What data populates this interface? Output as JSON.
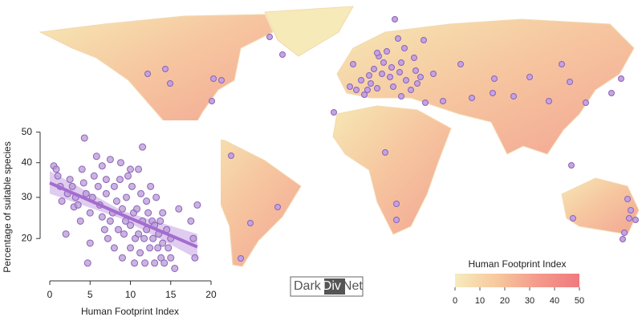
{
  "chart_data": [
    {
      "type": "scatter",
      "xlabel": "Human Footprint Index",
      "ylabel": "Percentage of suitable species",
      "xlim": [
        -0.5,
        20.5
      ],
      "ylim": [
        13.2,
        51.3
      ],
      "yscale": "sqrt",
      "xticks": [
        0,
        5,
        10,
        15,
        20
      ],
      "yticks": [
        20,
        30,
        40,
        50
      ],
      "color": "#b99ad6",
      "edgecolor": "#8a63b8",
      "x": [
        0.5,
        0.8,
        1,
        1.3,
        1.5,
        2,
        2.2,
        2.5,
        2.8,
        3,
        3.2,
        3.5,
        3.8,
        4,
        4.2,
        4.5,
        4.3,
        4.7,
        5,
        5,
        5.3,
        5.5,
        5.8,
        6,
        6.2,
        6.5,
        6.5,
        6.8,
        7,
        7,
        7.2,
        7.5,
        7.5,
        7.8,
        8,
        8,
        8.3,
        8.5,
        8.7,
        8.8,
        9,
        9,
        9.2,
        9.4,
        9.5,
        9.7,
        10,
        10,
        10,
        10.2,
        10.4,
        10.5,
        10.6,
        10.8,
        11,
        11,
        11.2,
        11.3,
        11.5,
        11.5,
        11.7,
        11.8,
        12,
        12,
        12.2,
        12.4,
        12.5,
        12.7,
        12.8,
        13,
        13,
        13.2,
        13.4,
        13.5,
        13.7,
        13.8,
        14,
        14,
        14.2,
        14.5,
        14.7,
        15,
        15,
        15.5,
        16,
        17.5,
        18,
        18.3,
        17.8
      ],
      "values": [
        39,
        38,
        36,
        33,
        29,
        21,
        31,
        35,
        33,
        27.5,
        30,
        28,
        24,
        38,
        34,
        31,
        48,
        15,
        19,
        26,
        30,
        36,
        42,
        33,
        28,
        25,
        39,
        22,
        35,
        31,
        20,
        41,
        24,
        26,
        33,
        18,
        29,
        22,
        35,
        40,
        16,
        27,
        21,
        24,
        30,
        36,
        38,
        18,
        23,
        33,
        26,
        15,
        20,
        27,
        38,
        21,
        17,
        31,
        24,
        45,
        20,
        15,
        29,
        22,
        26,
        18,
        33,
        24,
        20,
        23,
        15,
        30,
        18,
        21,
        24,
        16,
        26,
        19,
        15,
        22,
        18,
        20,
        16,
        14,
        27,
        24,
        16,
        28,
        20
      ],
      "trend": {
        "color": "#a46cd0",
        "x": [
          0,
          9,
          18.3
        ],
        "values": [
          34,
          25.5,
          18.2
        ],
        "lower": [
          31,
          24.5,
          15.8
        ],
        "upper": [
          37.5,
          26.5,
          21
        ]
      }
    },
    {
      "type": "colorbar",
      "title": "Human Footprint Index",
      "xlim": [
        0,
        50
      ],
      "xticks": [
        0,
        10,
        20,
        30,
        40,
        50
      ],
      "colors": [
        "#f6ebbd",
        "#f7c99e",
        "#f49a8c",
        "#f07a7e"
      ]
    }
  ],
  "logo": [
    "Dark",
    "Div",
    "Net"
  ]
}
